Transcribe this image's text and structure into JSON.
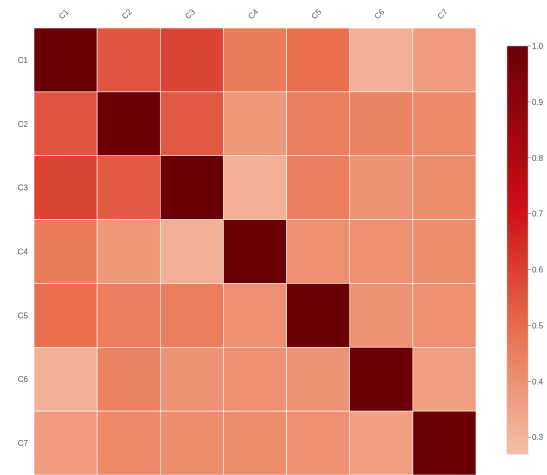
{
  "chart_data": {
    "type": "heatmap",
    "title": "",
    "xlabel": "",
    "ylabel": "",
    "categories": [
      "C1",
      "C2",
      "C3",
      "C4",
      "C5",
      "C6",
      "C7"
    ],
    "matrix": [
      [
        1.0,
        0.55,
        0.59,
        0.46,
        0.49,
        0.31,
        0.37
      ],
      [
        0.55,
        1.0,
        0.54,
        0.38,
        0.45,
        0.44,
        0.42
      ],
      [
        0.59,
        0.54,
        1.0,
        0.31,
        0.45,
        0.39,
        0.41
      ],
      [
        0.46,
        0.38,
        0.31,
        1.0,
        0.4,
        0.4,
        0.41
      ],
      [
        0.49,
        0.45,
        0.45,
        0.4,
        1.0,
        0.39,
        0.4
      ],
      [
        0.31,
        0.44,
        0.39,
        0.4,
        0.39,
        1.0,
        0.36
      ],
      [
        0.37,
        0.42,
        0.41,
        0.41,
        0.4,
        0.36,
        1.0
      ]
    ],
    "colorbar": {
      "range": [
        0.27,
        1.0
      ],
      "ticks": [
        "0.3",
        "0.4",
        "0.5",
        "0.6",
        "0.7",
        "0.8",
        "0.9",
        "1.0"
      ],
      "colormap": "Reds",
      "placement": "right"
    },
    "grid": true,
    "x_tick_rotation_deg": -45
  }
}
